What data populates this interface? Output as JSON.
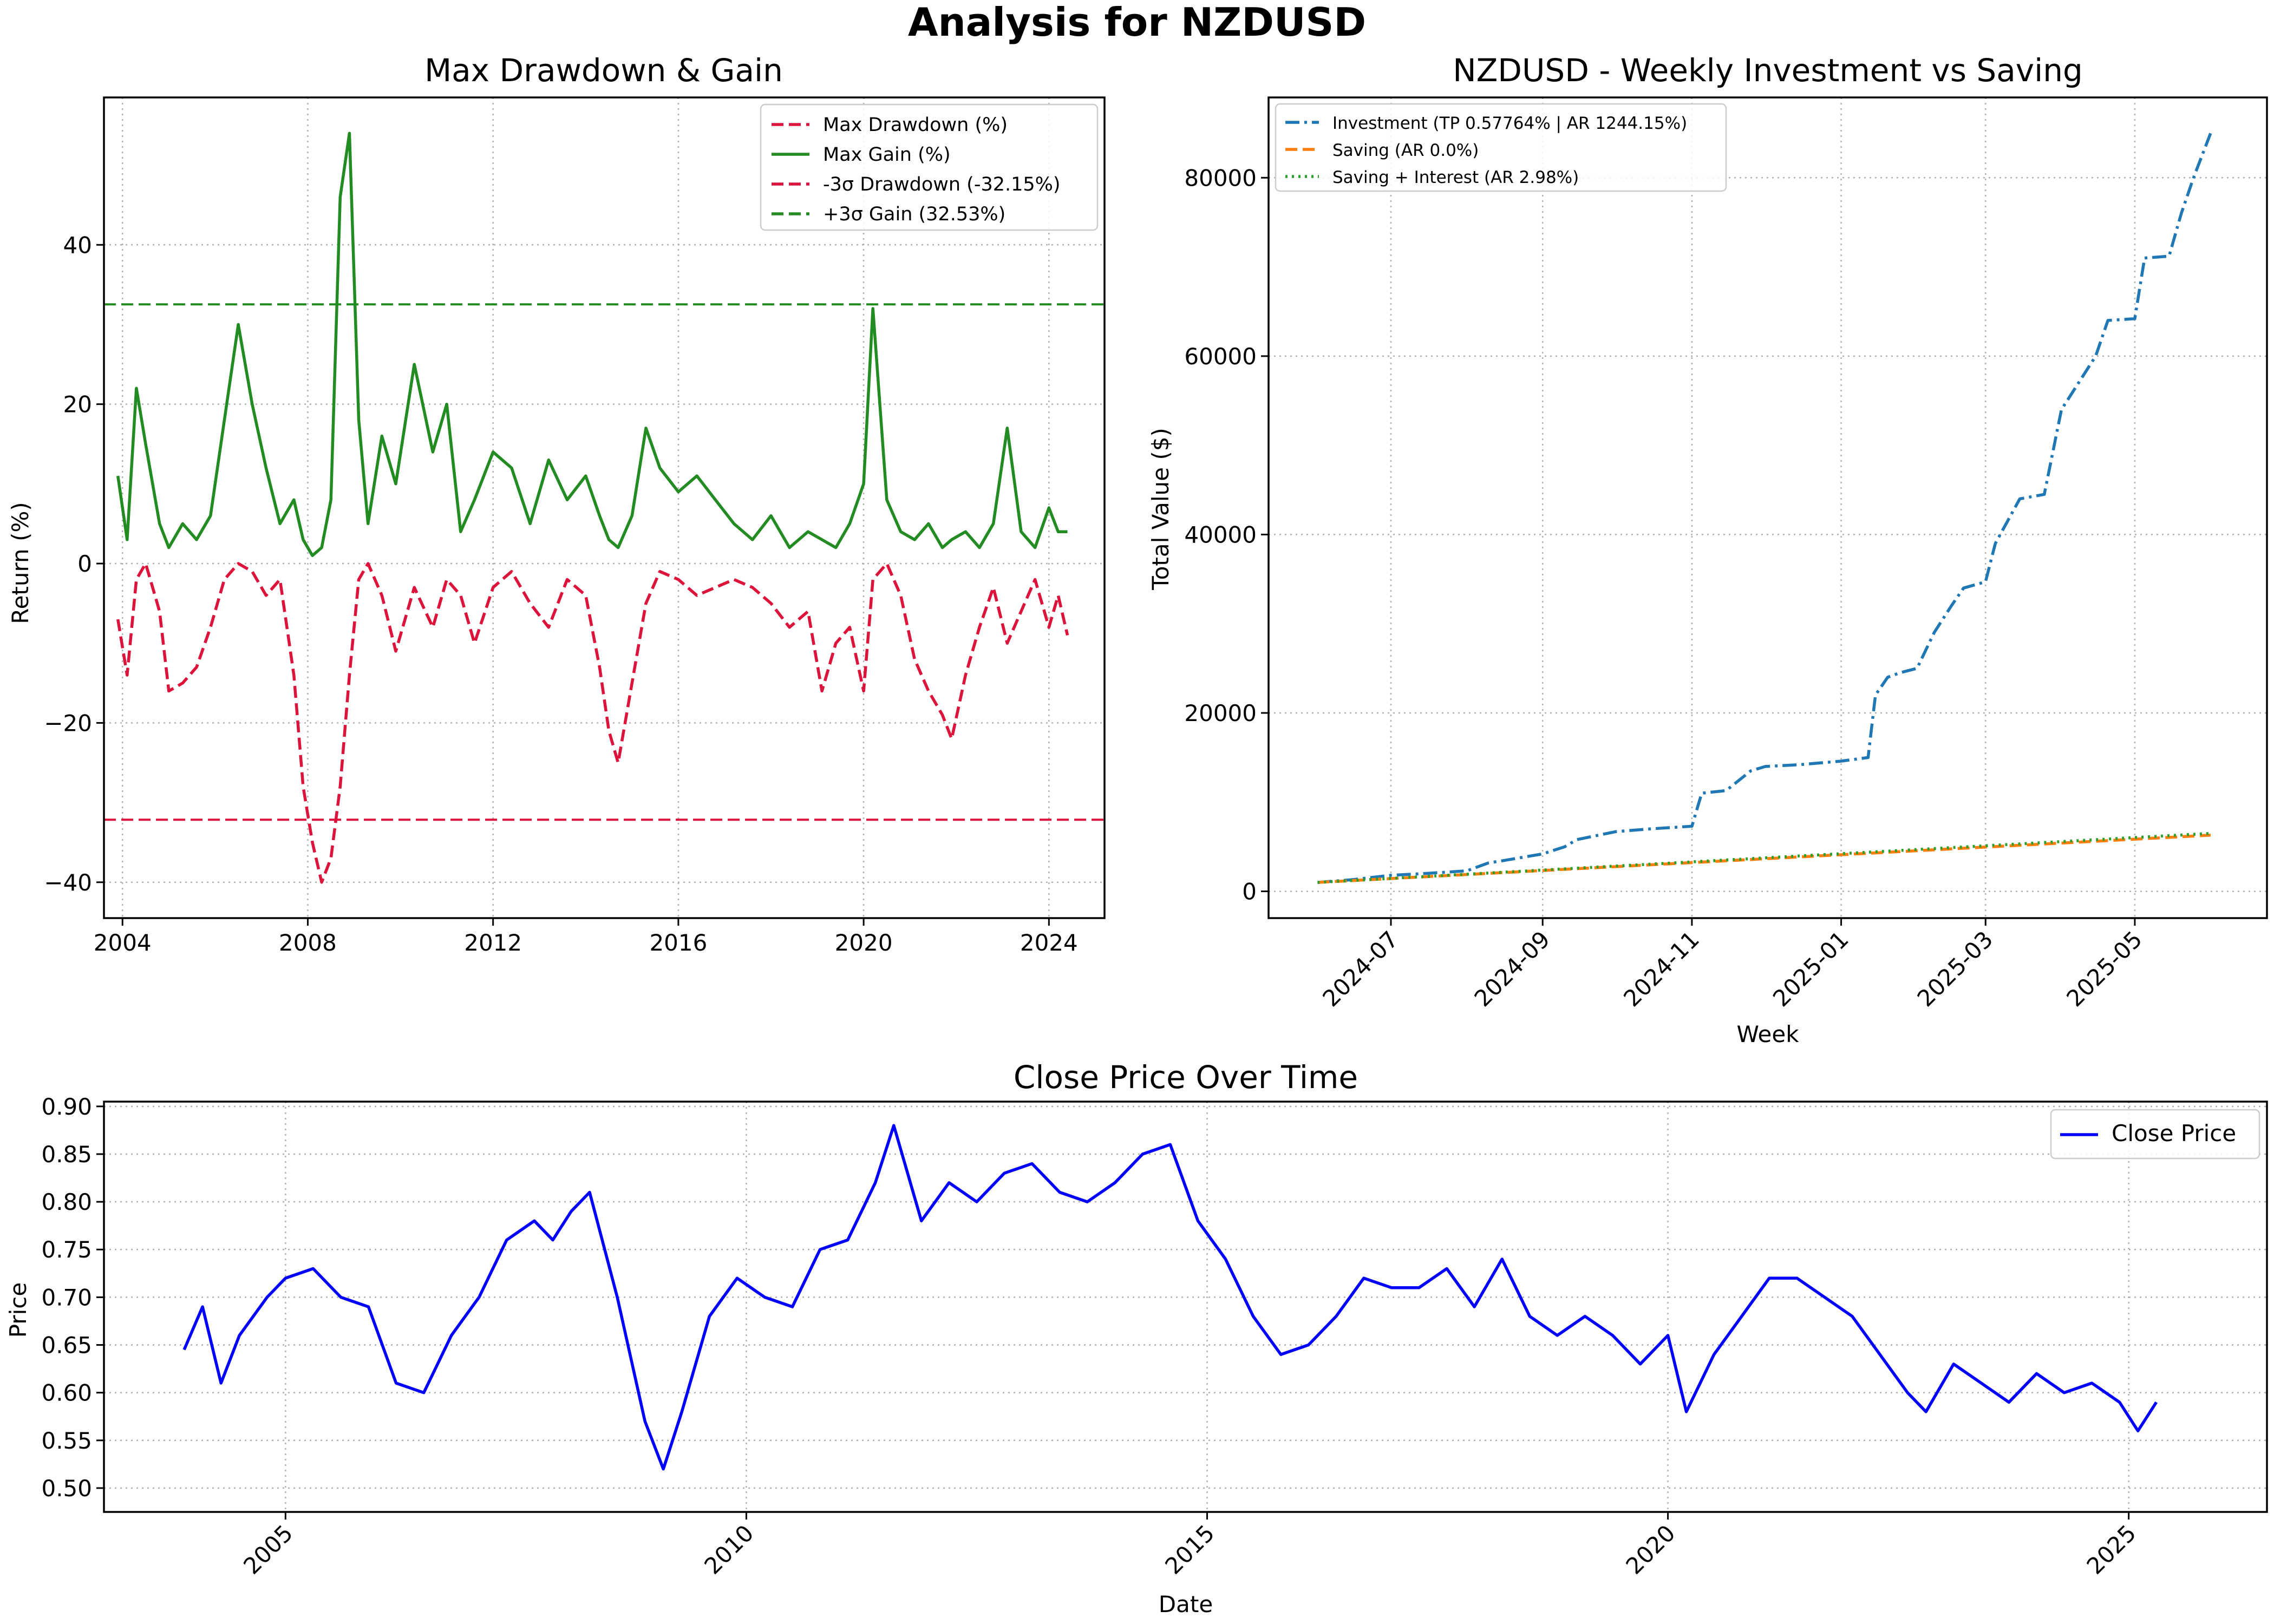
{
  "figure": {
    "title": "Analysis for NZDUSD"
  },
  "chart_data": [
    {
      "type": "line",
      "title": "Max Drawdown & Gain",
      "xlabel": "",
      "ylabel": "Return (%)",
      "x_ticks": [
        "2004",
        "2008",
        "2012",
        "2016",
        "2020",
        "2024"
      ],
      "y_ticks": [
        "−40",
        "−20",
        "0",
        "20",
        "40"
      ],
      "xlim": [
        2003.6,
        2025.2
      ],
      "ylim": [
        -44.5,
        58.5
      ],
      "grid": true,
      "legend_position": "top-right",
      "series": [
        {
          "name": "Max Drawdown (%)",
          "color": "#dc143c",
          "style": "dashed",
          "x": [
            2003.9,
            2004.1,
            2004.3,
            2004.5,
            2004.8,
            2005.0,
            2005.3,
            2005.6,
            2005.9,
            2006.2,
            2006.5,
            2006.8,
            2007.1,
            2007.4,
            2007.7,
            2007.9,
            2008.1,
            2008.3,
            2008.5,
            2008.7,
            2008.9,
            2009.1,
            2009.3,
            2009.6,
            2009.9,
            2010.3,
            2010.7,
            2011.0,
            2011.3,
            2011.6,
            2012.0,
            2012.4,
            2012.8,
            2013.2,
            2013.6,
            2014.0,
            2014.3,
            2014.5,
            2014.7,
            2015.0,
            2015.3,
            2015.6,
            2016.0,
            2016.4,
            2016.8,
            2017.2,
            2017.6,
            2018.0,
            2018.4,
            2018.8,
            2019.1,
            2019.4,
            2019.7,
            2020.0,
            2020.2,
            2020.5,
            2020.8,
            2021.1,
            2021.4,
            2021.7,
            2021.9,
            2022.2,
            2022.5,
            2022.8,
            2023.1,
            2023.4,
            2023.7,
            2024.0,
            2024.2,
            2024.4
          ],
          "y": [
            -7,
            -14,
            -2,
            0,
            -6,
            -16,
            -15,
            -13,
            -8,
            -2,
            0,
            -1,
            -4,
            -2,
            -14,
            -28,
            -35,
            -40,
            -37,
            -28,
            -14,
            -2,
            0,
            -4,
            -11,
            -3,
            -8,
            -2,
            -4,
            -10,
            -3,
            -1,
            -5,
            -8,
            -2,
            -4,
            -13,
            -21,
            -25,
            -15,
            -5,
            -1,
            -2,
            -4,
            -3,
            -2,
            -3,
            -5,
            -8,
            -6,
            -16,
            -10,
            -8,
            -16,
            -2,
            0,
            -4,
            -12,
            -16,
            -19,
            -22,
            -14,
            -8,
            -3,
            -10,
            -6,
            -2,
            -8,
            -4,
            -9
          ]
        },
        {
          "name": "Max Gain (%)",
          "color": "#228b22",
          "style": "solid",
          "x": [
            2003.9,
            2004.1,
            2004.3,
            2004.5,
            2004.8,
            2005.0,
            2005.3,
            2005.6,
            2005.9,
            2006.2,
            2006.5,
            2006.8,
            2007.1,
            2007.4,
            2007.7,
            2007.9,
            2008.1,
            2008.3,
            2008.5,
            2008.7,
            2008.9,
            2009.1,
            2009.3,
            2009.6,
            2009.9,
            2010.3,
            2010.7,
            2011.0,
            2011.3,
            2011.6,
            2012.0,
            2012.4,
            2012.8,
            2013.2,
            2013.6,
            2014.0,
            2014.3,
            2014.5,
            2014.7,
            2015.0,
            2015.3,
            2015.6,
            2016.0,
            2016.4,
            2016.8,
            2017.2,
            2017.6,
            2018.0,
            2018.4,
            2018.8,
            2019.1,
            2019.4,
            2019.7,
            2020.0,
            2020.2,
            2020.5,
            2020.8,
            2021.1,
            2021.4,
            2021.7,
            2021.9,
            2022.2,
            2022.5,
            2022.8,
            2023.1,
            2023.4,
            2023.7,
            2024.0,
            2024.2,
            2024.4
          ],
          "y": [
            11,
            3,
            22,
            15,
            5,
            2,
            5,
            3,
            6,
            18,
            30,
            20,
            12,
            5,
            8,
            3,
            1,
            2,
            8,
            46,
            54,
            18,
            5,
            16,
            10,
            25,
            14,
            20,
            4,
            8,
            14,
            12,
            5,
            13,
            8,
            11,
            6,
            3,
            2,
            6,
            17,
            12,
            9,
            11,
            8,
            5,
            3,
            6,
            2,
            4,
            3,
            2,
            5,
            10,
            32,
            8,
            4,
            3,
            5,
            2,
            3,
            4,
            2,
            5,
            17,
            4,
            2,
            7,
            4,
            4
          ]
        }
      ],
      "reference_lines": [
        {
          "name": "-3σ Drawdown (-32.15%)",
          "y": -32.15,
          "color": "#dc143c",
          "style": "dashed"
        },
        {
          "name": "+3σ Gain (32.53%)",
          "y": 32.53,
          "color": "#228b22",
          "style": "dashed"
        }
      ]
    },
    {
      "type": "line",
      "title": "NZDUSD - Weekly Investment vs Saving",
      "xlabel": "Week",
      "ylabel": "Total Value ($)",
      "x_ticks": [
        "2024-07",
        "2024-09",
        "2024-11",
        "2025-01",
        "2025-03",
        "2025-05"
      ],
      "y_ticks": [
        "0",
        "20000",
        "40000",
        "60000",
        "80000"
      ],
      "xlim": [
        "2024-05-12",
        "2025-06-24"
      ],
      "ylim": [
        -3000,
        89000
      ],
      "grid": true,
      "legend_position": "top-left",
      "series": [
        {
          "name": "Investment (TP 0.57764% | AR 1244.15%)",
          "color": "#1f77b4",
          "style": "dashdot",
          "x": [
            "2024-06-01",
            "2024-06-15",
            "2024-07-01",
            "2024-07-15",
            "2024-08-01",
            "2024-08-10",
            "2024-08-15",
            "2024-09-01",
            "2024-09-10",
            "2024-09-15",
            "2024-10-01",
            "2024-10-15",
            "2024-11-01",
            "2024-11-05",
            "2024-11-15",
            "2024-11-25",
            "2024-12-01",
            "2024-12-15",
            "2025-01-01",
            "2025-01-12",
            "2025-01-15",
            "2025-01-20",
            "2025-01-25",
            "2025-02-01",
            "2025-02-08",
            "2025-02-15",
            "2025-02-20",
            "2025-03-01",
            "2025-03-05",
            "2025-03-15",
            "2025-03-25",
            "2025-04-01",
            "2025-04-08",
            "2025-04-15",
            "2025-04-20",
            "2025-05-01",
            "2025-05-05",
            "2025-05-15",
            "2025-05-20",
            "2025-05-25",
            "2025-06-01"
          ],
          "y": [
            1000,
            1300,
            1800,
            2000,
            2300,
            3200,
            3400,
            4200,
            5000,
            5800,
            6700,
            7000,
            7300,
            11000,
            11300,
            13500,
            14000,
            14200,
            14600,
            15000,
            22000,
            24000,
            24500,
            25000,
            29000,
            32000,
            34000,
            34700,
            39000,
            44000,
            44500,
            54000,
            57000,
            60000,
            64000,
            64200,
            71000,
            71200,
            76000,
            80000,
            85000
          ]
        },
        {
          "name": "Saving (AR 0.0%)",
          "color": "#ff7f0e",
          "style": "dashed",
          "x": [
            "2024-06-01",
            "2025-06-01"
          ],
          "y": [
            1000,
            6300
          ]
        },
        {
          "name": "Saving + Interest (AR 2.98%)",
          "color": "#2ca02c",
          "style": "dotted",
          "x": [
            "2024-06-01",
            "2025-06-01"
          ],
          "y": [
            1000,
            6500
          ]
        }
      ]
    },
    {
      "type": "line",
      "title": "Close Price Over Time",
      "xlabel": "Date",
      "ylabel": "Price",
      "x_ticks": [
        "2005",
        "2010",
        "2015",
        "2020",
        "2025"
      ],
      "y_ticks": [
        "0.50",
        "0.55",
        "0.60",
        "0.65",
        "0.70",
        "0.75",
        "0.80",
        "0.85",
        "0.90"
      ],
      "xlim": [
        2003.03,
        2026.5
      ],
      "ylim": [
        0.475,
        0.905
      ],
      "grid": true,
      "legend_position": "top-right",
      "series": [
        {
          "name": "Close Price",
          "color": "#0000ff",
          "style": "solid",
          "x": [
            2003.9,
            2004.1,
            2004.3,
            2004.5,
            2004.8,
            2005.0,
            2005.3,
            2005.6,
            2005.9,
            2006.2,
            2006.5,
            2006.8,
            2007.1,
            2007.4,
            2007.7,
            2007.9,
            2008.1,
            2008.3,
            2008.6,
            2008.9,
            2009.1,
            2009.3,
            2009.6,
            2009.9,
            2010.2,
            2010.5,
            2010.8,
            2011.1,
            2011.4,
            2011.6,
            2011.9,
            2012.2,
            2012.5,
            2012.8,
            2013.1,
            2013.4,
            2013.7,
            2014.0,
            2014.3,
            2014.6,
            2014.9,
            2015.2,
            2015.5,
            2015.8,
            2016.1,
            2016.4,
            2016.7,
            2017.0,
            2017.3,
            2017.6,
            2017.9,
            2018.2,
            2018.5,
            2018.8,
            2019.1,
            2019.4,
            2019.7,
            2020.0,
            2020.2,
            2020.5,
            2020.8,
            2021.1,
            2021.4,
            2021.7,
            2022.0,
            2022.3,
            2022.6,
            2022.8,
            2023.1,
            2023.4,
            2023.7,
            2024.0,
            2024.3,
            2024.6,
            2024.9,
            2025.1,
            2025.3
          ],
          "y": [
            0.645,
            0.69,
            0.61,
            0.66,
            0.7,
            0.72,
            0.73,
            0.7,
            0.69,
            0.61,
            0.6,
            0.66,
            0.7,
            0.76,
            0.78,
            0.76,
            0.79,
            0.81,
            0.7,
            0.57,
            0.52,
            0.58,
            0.68,
            0.72,
            0.7,
            0.69,
            0.75,
            0.76,
            0.82,
            0.88,
            0.78,
            0.82,
            0.8,
            0.83,
            0.84,
            0.81,
            0.8,
            0.82,
            0.85,
            0.86,
            0.78,
            0.74,
            0.68,
            0.64,
            0.65,
            0.68,
            0.72,
            0.71,
            0.71,
            0.73,
            0.69,
            0.74,
            0.68,
            0.66,
            0.68,
            0.66,
            0.63,
            0.66,
            0.58,
            0.64,
            0.68,
            0.72,
            0.72,
            0.7,
            0.68,
            0.64,
            0.6,
            0.58,
            0.63,
            0.61,
            0.59,
            0.62,
            0.6,
            0.61,
            0.59,
            0.56,
            0.59
          ]
        }
      ]
    }
  ]
}
